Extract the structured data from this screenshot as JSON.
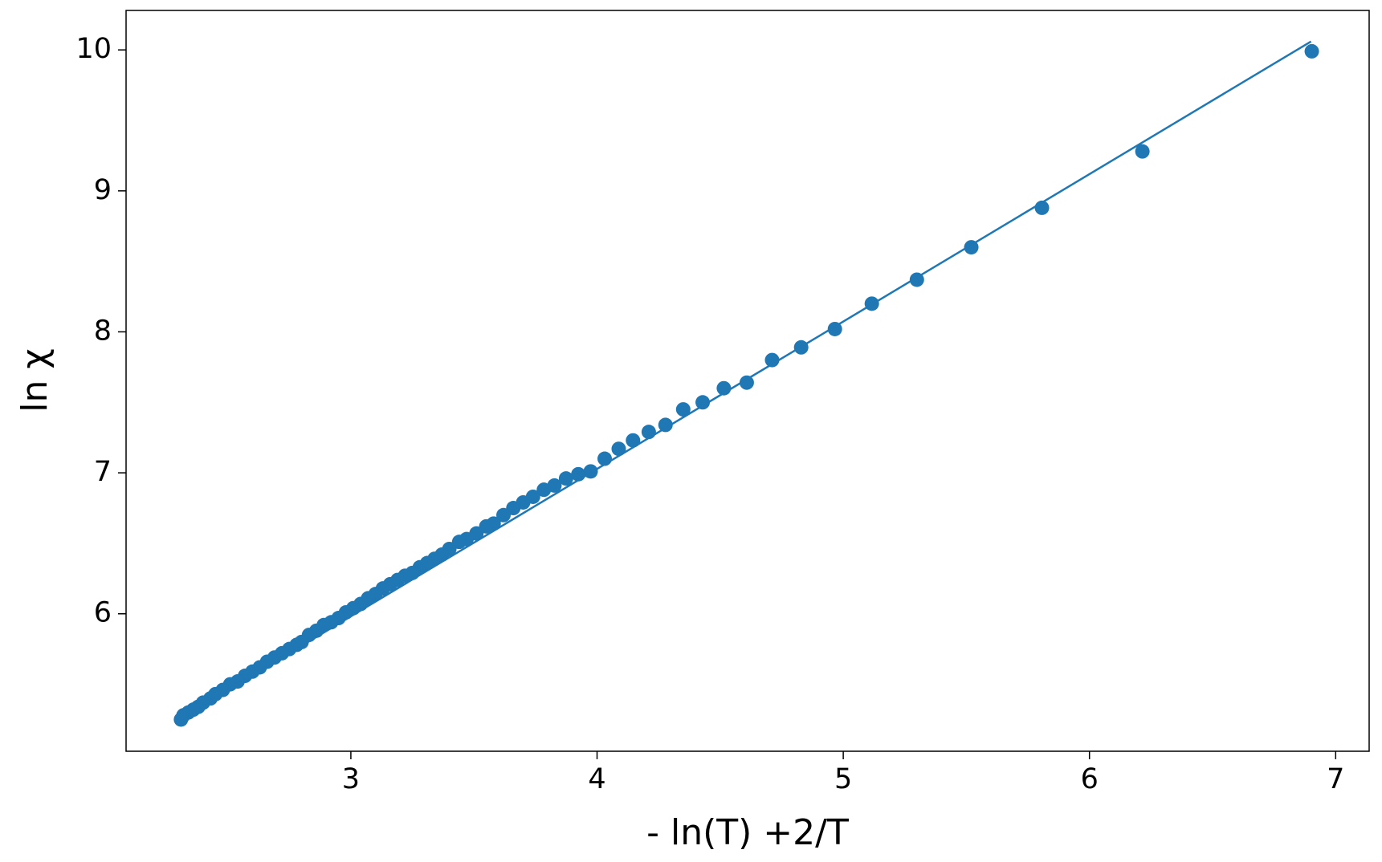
{
  "chart_data": {
    "type": "scatter",
    "xlabel": "- ln(T) +2/T",
    "ylabel": "ln χ",
    "xlim": [
      2.087,
      7.136
    ],
    "ylim": [
      5.025,
      10.28
    ],
    "xticks": [
      3,
      4,
      5,
      6,
      7
    ],
    "yticks": [
      6,
      7,
      8,
      9,
      10
    ],
    "grid": false,
    "series": [
      {
        "type": "scatter",
        "color": "#1f77b4",
        "x": [
          6.903,
          6.215,
          5.807,
          5.52,
          5.299,
          5.116,
          4.966,
          4.829,
          4.711,
          4.608,
          4.515,
          4.429,
          4.35,
          4.278,
          4.21,
          4.146,
          4.088,
          4.031,
          3.974,
          3.924,
          3.874,
          3.827,
          3.784,
          3.74,
          3.7,
          3.66,
          3.62,
          3.58,
          3.55,
          3.51,
          3.47,
          3.44,
          3.4,
          3.37,
          3.34,
          3.31,
          3.28,
          3.25,
          3.22,
          3.19,
          3.16,
          3.13,
          3.1,
          3.07,
          3.04,
          3.01,
          2.98,
          2.95,
          2.92,
          2.89,
          2.86,
          2.83,
          2.8,
          2.78,
          2.75,
          2.72,
          2.69,
          2.66,
          2.63,
          2.6,
          2.57,
          2.54,
          2.51,
          2.48,
          2.45,
          2.43,
          2.4,
          2.38,
          2.36,
          2.34,
          2.32,
          2.31
        ],
        "y": [
          9.99,
          9.28,
          8.88,
          8.6,
          8.37,
          8.2,
          8.02,
          7.89,
          7.8,
          7.64,
          7.6,
          7.5,
          7.45,
          7.34,
          7.29,
          7.23,
          7.17,
          7.1,
          7.01,
          6.99,
          6.96,
          6.91,
          6.88,
          6.83,
          6.79,
          6.75,
          6.7,
          6.64,
          6.62,
          6.57,
          6.53,
          6.51,
          6.46,
          6.42,
          6.39,
          6.36,
          6.33,
          6.29,
          6.27,
          6.24,
          6.21,
          6.18,
          6.14,
          6.11,
          6.07,
          6.04,
          6.01,
          5.97,
          5.94,
          5.92,
          5.88,
          5.85,
          5.8,
          5.78,
          5.75,
          5.72,
          5.69,
          5.66,
          5.62,
          5.59,
          5.56,
          5.52,
          5.5,
          5.46,
          5.43,
          5.4,
          5.37,
          5.34,
          5.32,
          5.3,
          5.28,
          5.25
        ]
      },
      {
        "type": "line",
        "color": "#1f77b4",
        "x": [
          2.3,
          6.9
        ],
        "y": [
          5.25,
          10.06
        ]
      }
    ]
  }
}
